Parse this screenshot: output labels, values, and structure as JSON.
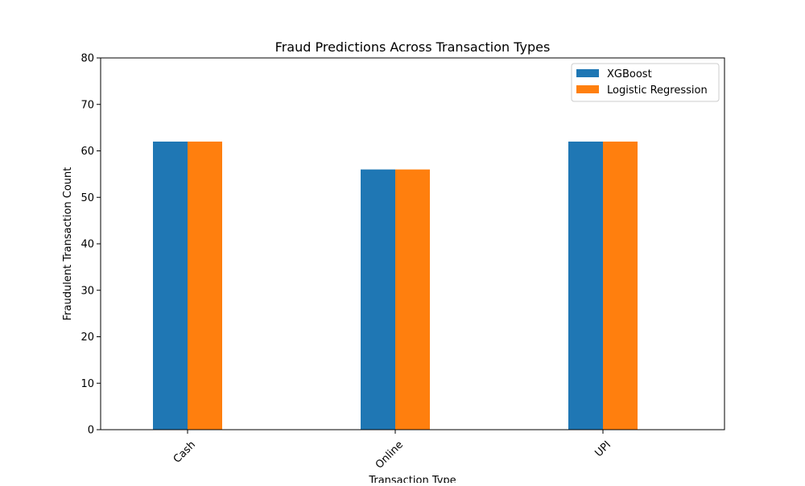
{
  "chart_data": {
    "type": "bar",
    "title": "Fraud Predictions Across Transaction Types",
    "xlabel": "Transaction Type",
    "ylabel": "Fraudulent Transaction Count",
    "categories": [
      "Cash",
      "Online",
      "UPI"
    ],
    "series": [
      {
        "name": "XGBoost",
        "values": [
          62,
          56,
          62
        ],
        "color": "#1f77b4"
      },
      {
        "name": "Logistic Regression",
        "values": [
          62,
          56,
          62
        ],
        "color": "#ff7f0e"
      }
    ],
    "ylim": [
      0,
      80
    ],
    "yticks": [
      0,
      10,
      20,
      30,
      40,
      50,
      60,
      70,
      80
    ],
    "grid": false,
    "legend_position": "top-right",
    "x_tick_rotation": "45"
  }
}
